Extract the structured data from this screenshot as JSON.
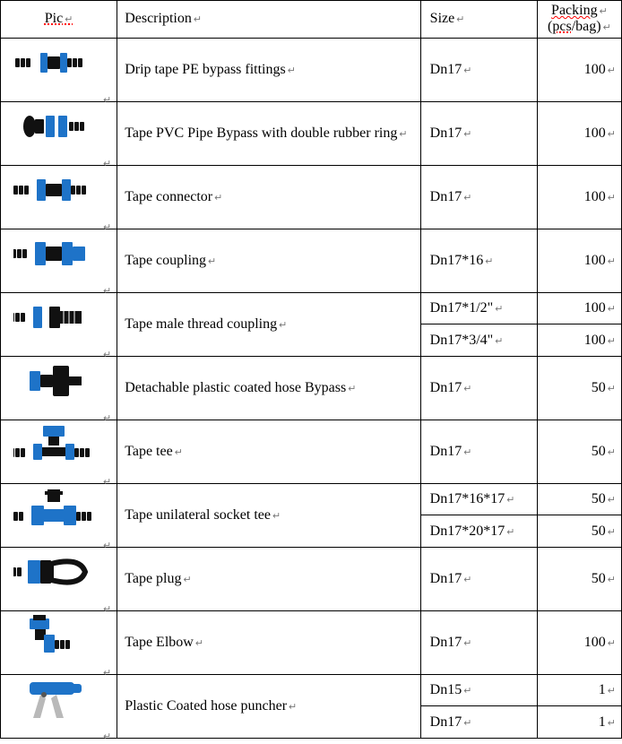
{
  "colors": {
    "border": "#000000",
    "blue": "#1e73c8",
    "black": "#111111",
    "grey": "#b9b9b9",
    "bg": "#ffffff",
    "accent_red": "#d40000"
  },
  "header": {
    "pic": "Pic",
    "description": "Description",
    "size": "Size",
    "packing_l1": "Packing",
    "packing_l2": "(pcs/bag)"
  },
  "rows": [
    {
      "icon": "bypass",
      "desc": "Drip tape PE bypass fittings",
      "sizes": [
        {
          "s": "Dn17",
          "p": "100"
        }
      ]
    },
    {
      "icon": "bypass-ring",
      "desc": "Tape PVC Pipe Bypass with double rubber ring",
      "sizes": [
        {
          "s": "Dn17",
          "p": "100"
        }
      ]
    },
    {
      "icon": "connector",
      "desc": "Tape connector",
      "sizes": [
        {
          "s": "Dn17",
          "p": "100"
        }
      ]
    },
    {
      "icon": "coupling",
      "desc": "Tape coupling",
      "sizes": [
        {
          "s": "Dn17*16",
          "p": "100"
        }
      ]
    },
    {
      "icon": "male-thread",
      "desc": "Tape male thread coupling",
      "sizes": [
        {
          "s": "Dn17*1/2\"",
          "p": "100"
        },
        {
          "s": "Dn17*3/4\"",
          "p": "100"
        }
      ]
    },
    {
      "icon": "detach-bypass",
      "desc": "Detachable plastic coated hose Bypass",
      "sizes": [
        {
          "s": "Dn17",
          "p": "50"
        }
      ]
    },
    {
      "icon": "tee-black",
      "desc": "Tape tee",
      "sizes": [
        {
          "s": "Dn17",
          "p": "50"
        }
      ]
    },
    {
      "icon": "tee-blue",
      "desc": "Tape unilateral socket tee",
      "sizes": [
        {
          "s": "Dn17*16*17",
          "p": "50"
        },
        {
          "s": "Dn17*20*17",
          "p": "50"
        }
      ]
    },
    {
      "icon": "plug",
      "desc": "Tape plug",
      "sizes": [
        {
          "s": "Dn17",
          "p": "50"
        }
      ]
    },
    {
      "icon": "elbow",
      "desc": "Tape Elbow",
      "sizes": [
        {
          "s": "Dn17",
          "p": "100"
        }
      ]
    },
    {
      "icon": "puncher",
      "desc": "Plastic Coated hose puncher",
      "sizes": [
        {
          "s": "Dn15",
          "p": "1"
        },
        {
          "s": "Dn17",
          "p": "1"
        }
      ]
    }
  ]
}
